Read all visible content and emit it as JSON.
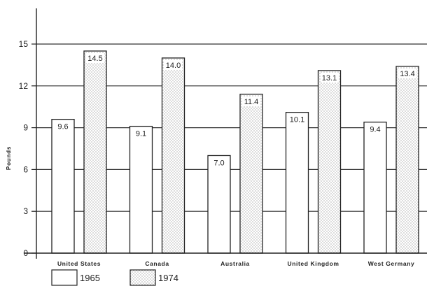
{
  "chart_data": {
    "type": "bar",
    "title": "",
    "xlabel": "",
    "ylabel": "Pounds",
    "ylim": [
      0,
      15
    ],
    "yticks": [
      0,
      3,
      6,
      9,
      12,
      15
    ],
    "grid": true,
    "legend_position": "bottom-left",
    "categories": [
      "United States",
      "Canada",
      "Australia",
      "United Kingdom",
      "West Germany"
    ],
    "series": [
      {
        "name": "1965",
        "values": [
          9.6,
          9.1,
          7.0,
          10.1,
          9.4
        ],
        "labels": [
          "9.6",
          "9.1",
          "7.0",
          "10.1",
          "9.4"
        ],
        "fill": "plain"
      },
      {
        "name": "1974",
        "values": [
          14.5,
          14.0,
          11.4,
          13.1,
          13.4
        ],
        "labels": [
          "14.5",
          "14.0",
          "11.4",
          "13.1",
          "13.4"
        ],
        "fill": "dotted"
      }
    ]
  }
}
